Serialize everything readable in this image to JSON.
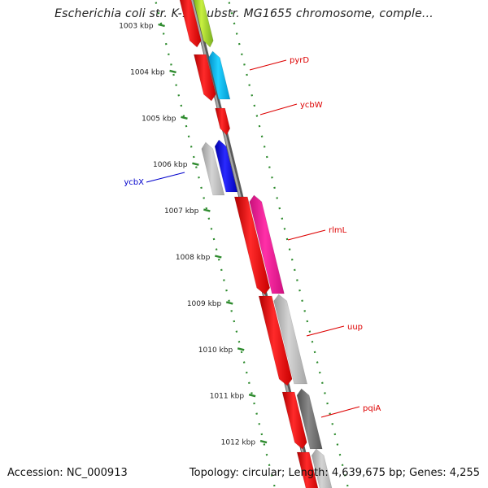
{
  "title": "Escherichia coli str. K-12 substr. MG1655 chromosome, comple...",
  "accession_text": "Accession: NC_000913",
  "summary_text": "Topology: circular; Length: 4,639,675 bp; Genes: 4,255",
  "kbp_ticks": [
    "1003 kbp",
    "1004 kbp",
    "1005 kbp",
    "1006 kbp",
    "1007 kbp",
    "1008 kbp",
    "1009 kbp",
    "1010 kbp",
    "1011 kbp",
    "1012 kbp"
  ],
  "gene_labels": [
    {
      "name": "pyrD",
      "color": "#dd0000"
    },
    {
      "name": "ycbW",
      "color": "#dd0000"
    },
    {
      "name": "ycbX",
      "color": "#0000cc"
    },
    {
      "name": "rlmL",
      "color": "#dd0000"
    },
    {
      "name": "uup",
      "color": "#dd0000"
    },
    {
      "name": "pqiA",
      "color": "#dd0000"
    }
  ],
  "colors": {
    "backbone": "#8a8a8a",
    "tick_dots": "#2e8b2e",
    "gene_red": "#ff0000",
    "gene_cyan": "#00bfff",
    "gene_blue": "#0000ff",
    "gene_magenta": "#ff1493",
    "gene_gray": "#b4b4b4",
    "gene_darkgray": "#6e6e6e",
    "gene_yellowgreen": "#9acd32"
  }
}
